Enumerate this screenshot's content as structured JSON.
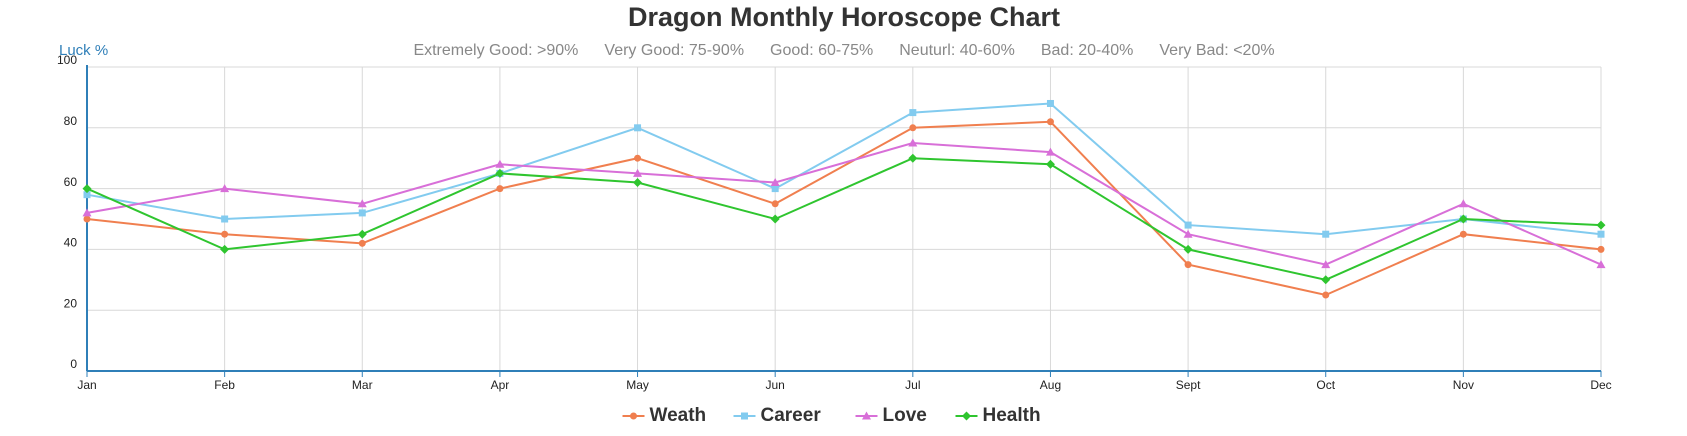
{
  "chart_data": {
    "type": "line",
    "title": "Dragon Monthly Horoscope Chart",
    "subtitle": [
      "Extremely Good: >90%",
      "Very Good: 75-90%",
      "Good: 60-75%",
      "Neuturl: 40-60%",
      "Bad: 20-40%",
      "Very Bad: <20%"
    ],
    "y_label": "Luck %",
    "categories": [
      "Jan",
      "Feb",
      "Mar",
      "Apr",
      "May",
      "Jun",
      "Jul",
      "Aug",
      "Sept",
      "Oct",
      "Nov",
      "Dec"
    ],
    "series": [
      {
        "name": "Weath",
        "color": "#f07f4f",
        "marker": "circle",
        "values": [
          50,
          45,
          42,
          60,
          70,
          55,
          80,
          82,
          35,
          25,
          45,
          40
        ]
      },
      {
        "name": "Career",
        "color": "#82cbef",
        "marker": "square",
        "values": [
          58,
          50,
          52,
          65,
          80,
          60,
          85,
          88,
          48,
          45,
          50,
          45
        ]
      },
      {
        "name": "Love",
        "color": "#d86fd8",
        "marker": "triangle",
        "values": [
          52,
          60,
          55,
          68,
          65,
          62,
          75,
          72,
          45,
          35,
          55,
          35
        ]
      },
      {
        "name": "Health",
        "color": "#2fc52f",
        "marker": "diamond",
        "values": [
          60,
          40,
          45,
          65,
          62,
          50,
          70,
          68,
          40,
          30,
          50,
          48
        ]
      }
    ],
    "ylim": [
      0,
      100
    ],
    "yticks": [
      0,
      20,
      40,
      60,
      80,
      100
    ],
    "grid": true,
    "legend": "bottom"
  }
}
